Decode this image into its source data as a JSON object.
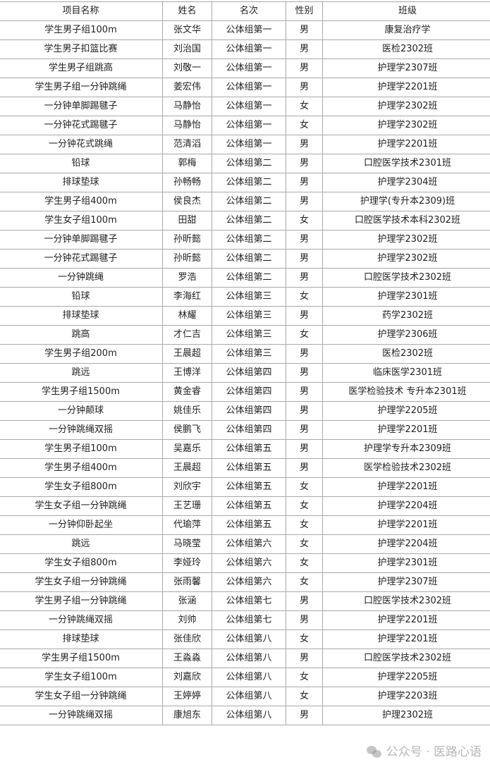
{
  "headers": [
    "项目名称",
    "姓名",
    "名次",
    "性别",
    "班级"
  ],
  "rows": [
    [
      "学生男子组100m",
      "张文华",
      "公体组第一",
      "男",
      "康复治疗学"
    ],
    [
      "学生男子扣篮比赛",
      "刘治国",
      "公体组第一",
      "男",
      "医检2302班"
    ],
    [
      "学生男子组跳高",
      "刘敬一",
      "公体组第一",
      "男",
      "护理学2307班"
    ],
    [
      "学生男子组一分钟跳绳",
      "姜宏伟",
      "公体组第一",
      "男",
      "护理学2201班"
    ],
    [
      "一分钟单脚踢毽子",
      "马静怡",
      "公体组第一",
      "女",
      "护理学2302班"
    ],
    [
      "一分钟花式踢毽子",
      "马静怡",
      "公体组第一",
      "女",
      "护理学2302班"
    ],
    [
      "一分钟花式跳绳",
      "范清滔",
      "公体组第一",
      "男",
      "护理学2201班"
    ],
    [
      "铅球",
      "郭梅",
      "公体组第二",
      "男",
      "口腔医学技术2301班"
    ],
    [
      "排球垫球",
      "孙畅畅",
      "公体组第二",
      "男",
      "护理学2304班"
    ],
    [
      "学生男子组400m",
      "侯良杰",
      "公体组第二",
      "男",
      "护理学(专升本2309)班"
    ],
    [
      "学生女子组100m",
      "田甜",
      "公体组第二",
      "女",
      "口腔医学技术本科2302班"
    ],
    [
      "一分钟单脚踢毽子",
      "孙昕懿",
      "公体组第二",
      "男",
      "护理学2302班"
    ],
    [
      "一分钟花式踢毽子",
      "孙昕懿",
      "公体组第二",
      "男",
      "护理学2302班"
    ],
    [
      "一分钟跳绳",
      "罗浩",
      "公体组第二",
      "男",
      "口腔医学技术2302班"
    ],
    [
      "铅球",
      "李海红",
      "公体组第三",
      "女",
      "护理学2301班"
    ],
    [
      "排球垫球",
      "林耀",
      "公体组第三",
      "男",
      "药学2302班"
    ],
    [
      "跳高",
      "才仁吉",
      "公体组第三",
      "女",
      "护理学2306班"
    ],
    [
      "学生男子组200m",
      "王晨超",
      "公体组第三",
      "男",
      "医检2302班"
    ],
    [
      "跳远",
      "王博洋",
      "公体组第四",
      "男",
      "临床医学2301班"
    ],
    [
      "学生男子组1500m",
      "黄金睿",
      "公体组第四",
      "男",
      "医学检验技术 专升本2301班"
    ],
    [
      "一分钟颠球",
      "姚佳乐",
      "公体组第四",
      "男",
      "护理学2205班"
    ],
    [
      "一分钟跳绳双摇",
      "侯鹏飞",
      "公体组第四",
      "男",
      "护理学2201班"
    ],
    [
      "学生男子组100m",
      "吴嘉乐",
      "公体组第五",
      "男",
      "护理学专升本2309班"
    ],
    [
      "学生男子组400m",
      "王晨超",
      "公体组第五",
      "男",
      "医学检验技术2302班"
    ],
    [
      "学生女子组800m",
      "刘欣宇",
      "公体组第五",
      "女",
      "护理学2201班"
    ],
    [
      "学生女子组一分钟跳绳",
      "王艺珊",
      "公体组第五",
      "女",
      "护理学2204班"
    ],
    [
      "一分钟仰卧起坐",
      "代瑜萍",
      "公体组第五",
      "女",
      "护理学2201班"
    ],
    [
      "跳远",
      "马晓莹",
      "公体组第六",
      "女",
      "护理学2204班"
    ],
    [
      "学生女子组800m",
      "李娅玲",
      "公体组第六",
      "女",
      "护理学2301班"
    ],
    [
      "学生女子组一分钟跳绳",
      "张雨馨",
      "公体组第六",
      "女",
      "护理学2307班"
    ],
    [
      "学生男子组一分钟跳绳",
      "张涵",
      "公体组第七",
      "男",
      "口腔医学技术2302班"
    ],
    [
      "一分钟跳绳双摇",
      "刘帅",
      "公体组第七",
      "男",
      "护理学2201班"
    ],
    [
      "排球垫球",
      "张佳欣",
      "公体组第八",
      "女",
      "护理学2201班"
    ],
    [
      "学生男子组1500m",
      "王淼淼",
      "公体组第八",
      "男",
      "口腔医学技术2302班"
    ],
    [
      "学生女子组100m",
      "刘嘉欣",
      "公体组第八",
      "女",
      "护理学2205班"
    ],
    [
      "学生女子组一分钟跳绳",
      "王婷婷",
      "公体组第八",
      "女",
      "护理学2203班"
    ],
    [
      "一分钟跳绳双摇",
      "康旭东",
      "公体组第八",
      "男",
      "护理2302班"
    ]
  ],
  "watermark": "公众号 · 医路心语",
  "watermark_icon": "wechat-icon"
}
